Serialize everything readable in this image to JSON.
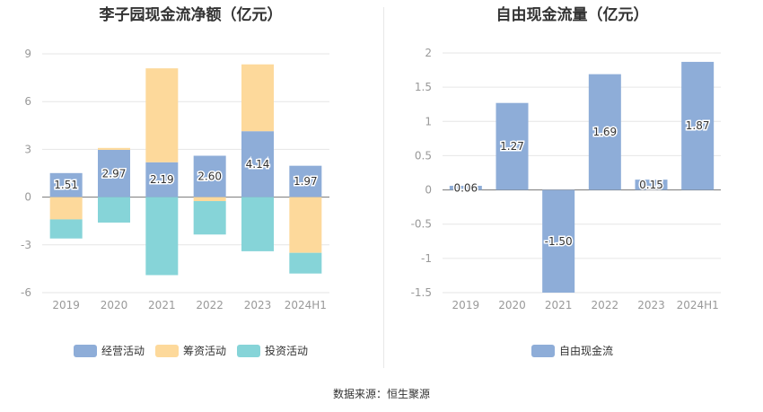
{
  "source": "数据来源：恒生聚源",
  "chart_data": [
    {
      "type": "bar",
      "stacked": true,
      "title": "李子园现金流净额（亿元）",
      "categories": [
        "2019",
        "2020",
        "2021",
        "2022",
        "2023",
        "2024H1"
      ],
      "yticks": [
        "9",
        "6",
        "3",
        "0",
        "-3",
        "-6"
      ],
      "ylim": [
        -6,
        9
      ],
      "series": [
        {
          "name": "经营活动",
          "color": "#8eadd8",
          "values": [
            1.51,
            2.97,
            2.19,
            2.6,
            4.14,
            1.97
          ]
        },
        {
          "name": "筹资活动",
          "color": "#fdd99b",
          "values": [
            -1.4,
            0.12,
            5.9,
            -0.25,
            4.2,
            -3.5
          ]
        },
        {
          "name": "投资活动",
          "color": "#86d4d8",
          "values": [
            -1.2,
            -1.6,
            -4.9,
            -2.1,
            -3.4,
            -1.3
          ]
        }
      ],
      "labels": [
        "1.51",
        "2.97",
        "2.19",
        "2.60",
        "4.14",
        "1.97"
      ]
    },
    {
      "type": "bar",
      "title": "自由现金流量（亿元）",
      "categories": [
        "2019",
        "2020",
        "2021",
        "2022",
        "2023",
        "2024H1"
      ],
      "yticks": [
        "2",
        "1.5",
        "1",
        "0.5",
        "0",
        "-0.5",
        "-1",
        "-1.5"
      ],
      "ylim": [
        -1.5,
        2
      ],
      "series": [
        {
          "name": "自由现金流",
          "color": "#8eadd8",
          "values": [
            0.06,
            1.27,
            -1.5,
            1.69,
            0.15,
            1.87
          ]
        }
      ],
      "labels": [
        "0.06",
        "1.27",
        "-1.50",
        "1.69",
        "0.15",
        "1.87"
      ]
    }
  ]
}
